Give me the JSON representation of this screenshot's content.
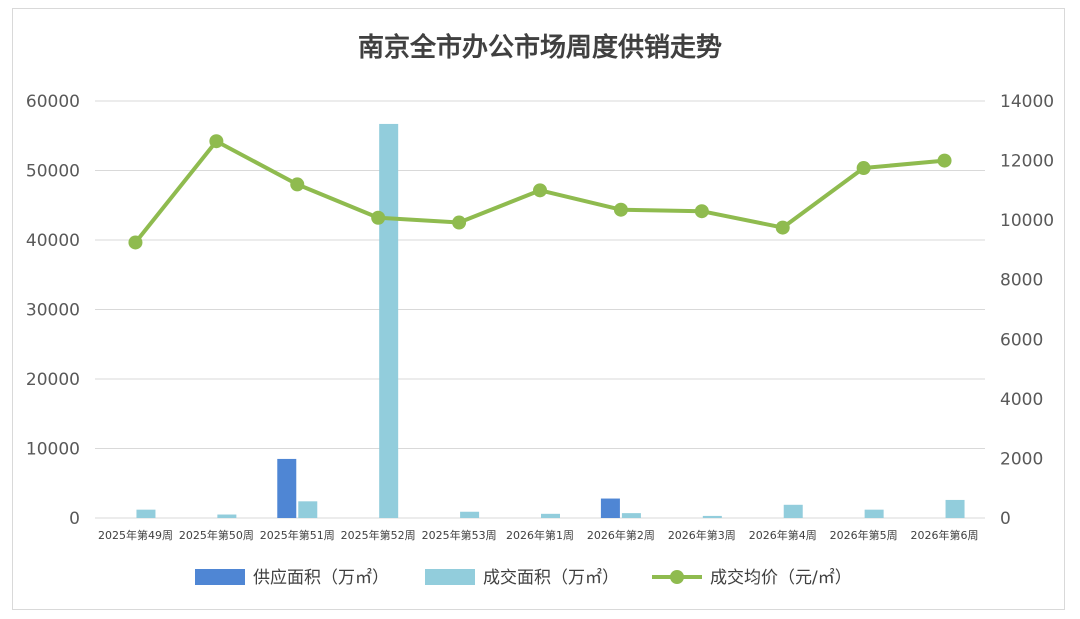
{
  "chart_data": {
    "type": "bar",
    "title": "南京全市办公市场周度供销走势",
    "categories": [
      "2025年第49周",
      "2025年第50周",
      "2025年第51周",
      "2025年第52周",
      "2025年第53周",
      "2026年第1周",
      "2026年第2周",
      "2026年第3周",
      "2026年第4周",
      "2026年第5周",
      "2026年第6周"
    ],
    "y_left": {
      "min": 0,
      "max": 60000,
      "ticks": [
        "0",
        "10000",
        "20000",
        "30000",
        "40000",
        "50000",
        "60000"
      ]
    },
    "y_right": {
      "min": 0,
      "max": 14000,
      "ticks": [
        "0",
        "2000",
        "4000",
        "6000",
        "8000",
        "10000",
        "12000",
        "14000"
      ]
    },
    "series": [
      {
        "name": "供应面积（万㎡）",
        "type": "bar",
        "axis": "left",
        "color": "#4f86d4",
        "values": [
          0,
          0,
          8500,
          0,
          0,
          0,
          2800,
          0,
          0,
          0,
          0
        ]
      },
      {
        "name": "成交面积（万㎡）",
        "type": "bar",
        "axis": "left",
        "color": "#92cddc",
        "values": [
          1200,
          500,
          2400,
          56700,
          900,
          600,
          700,
          300,
          1900,
          1200,
          2600
        ]
      },
      {
        "name": "成交均价（元/㎡）",
        "type": "line",
        "axis": "right",
        "color": "#8fbb4f",
        "values": [
          9250,
          12650,
          11200,
          10080,
          9920,
          11000,
          10350,
          10300,
          9750,
          11750,
          12000
        ]
      }
    ],
    "grid": true,
    "legend_position": "bottom"
  }
}
